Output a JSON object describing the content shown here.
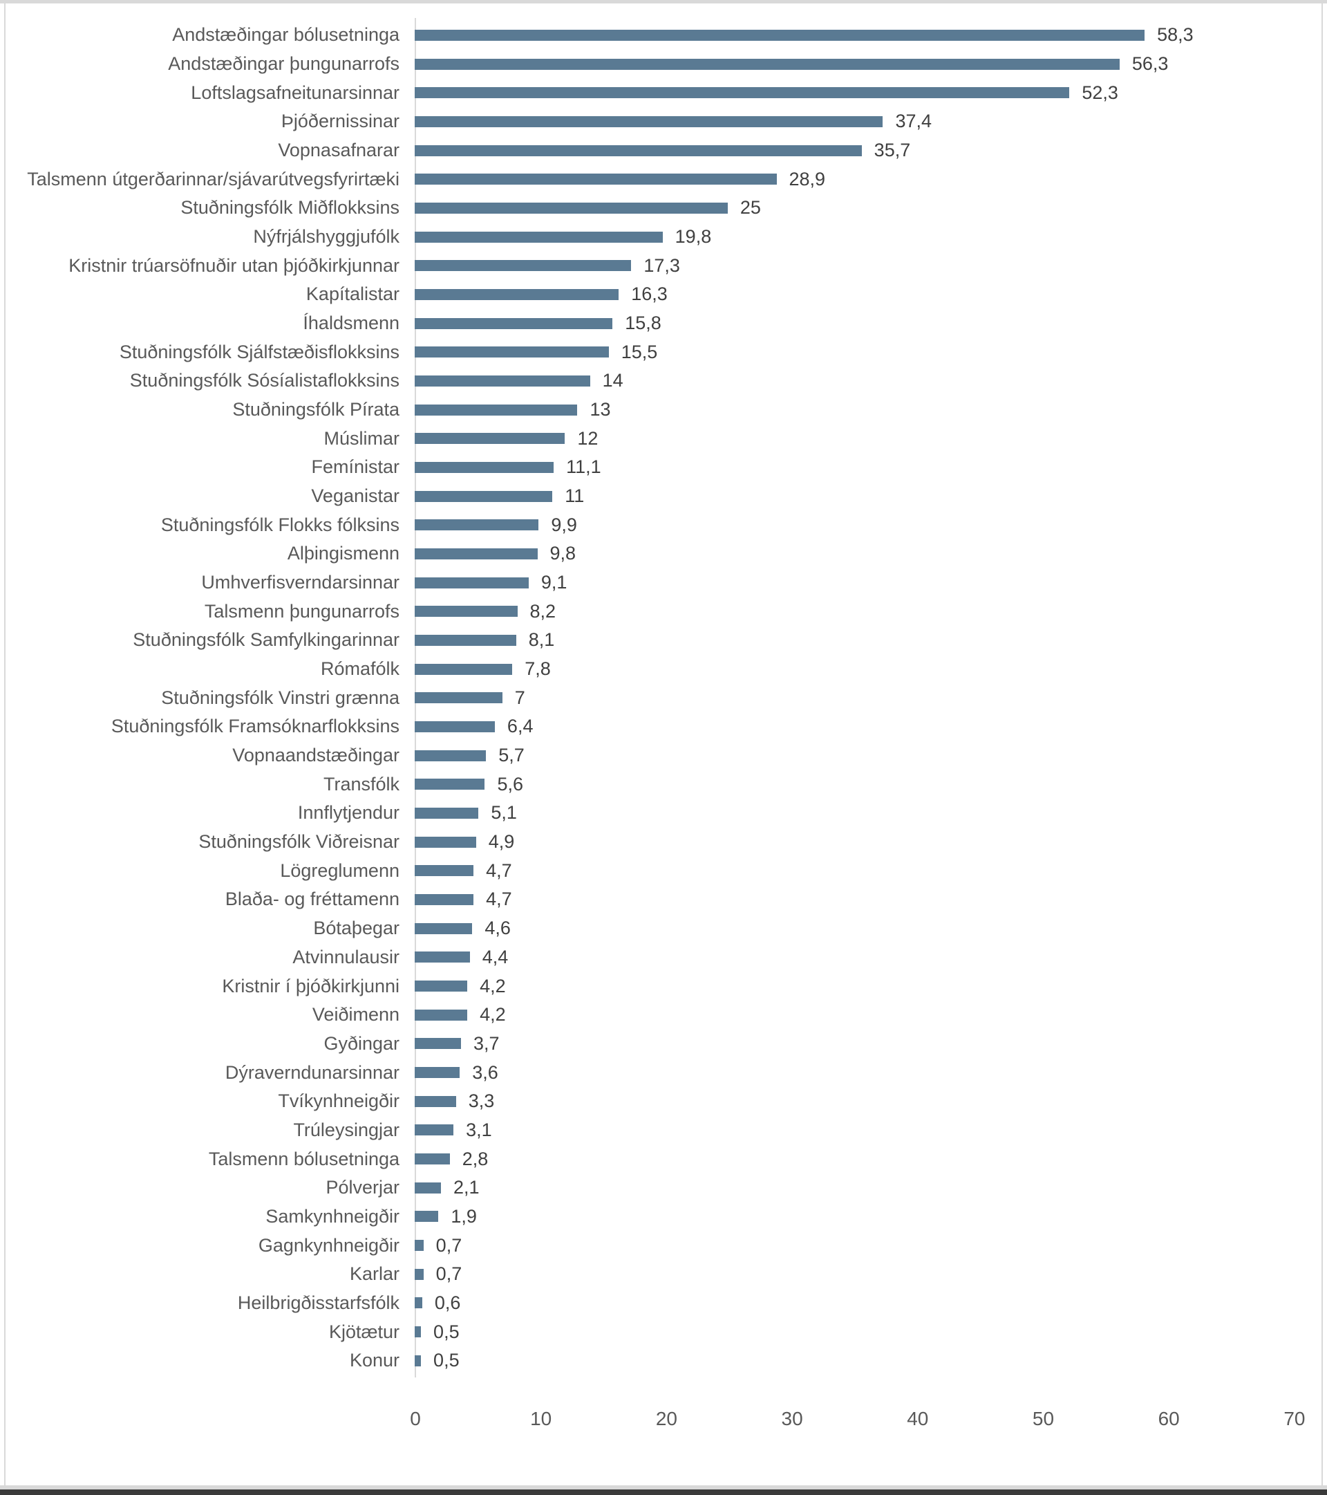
{
  "chart_data": {
    "type": "bar",
    "orientation": "horizontal",
    "title": "",
    "xlabel": "",
    "ylabel": "",
    "xlim": [
      0,
      70
    ],
    "x_ticks": [
      "0",
      "10",
      "20",
      "30",
      "40",
      "50",
      "60",
      "70"
    ],
    "grid": false,
    "legend": false,
    "bar_color": "#5a7a93",
    "category_label_color": "#595959",
    "value_label_color": "#404040",
    "axis_line_color": "#d9d9d9",
    "categories": [
      "Andstæðingar bólusetninga",
      "Andstæðingar þungunarrofs",
      "Loftslagsafneitunarsinnar",
      "Þjóðernissinar",
      "Vopnasafnarar",
      "Talsmenn útgerðarinnar/sjávarútvegsfyrirtæki",
      "Stuðningsfólk Miðflokksins",
      "Nýfrjálshyggjufólk",
      "Kristnir trúarsöfnuðir utan þjóðkirkjunnar",
      "Kapítalistar",
      "Íhaldsmenn",
      "Stuðningsfólk Sjálfstæðisflokksins",
      "Stuðningsfólk Sósíalistaflokksins",
      "Stuðningsfólk Pírata",
      "Múslimar",
      "Femínistar",
      "Veganistar",
      "Stuðningsfólk Flokks fólksins",
      "Alþingismenn",
      "Umhverfisverndarsinnar",
      "Talsmenn þungunarrofs",
      "Stuðningsfólk Samfylkingarinnar",
      "Rómafólk",
      "Stuðningsfólk Vinstri grænna",
      "Stuðningsfólk Framsóknarflokksins",
      "Vopnaandstæðingar",
      "Transfólk",
      "Innflytjendur",
      "Stuðningsfólk Viðreisnar",
      "Lögreglumenn",
      "Blaða- og fréttamenn",
      "Bótaþegar",
      "Atvinnulausir",
      "Kristnir í þjóðkirkjunni",
      "Veiðimenn",
      "Gyðingar",
      "Dýraverndunarsinnar",
      "Tvíkynhneigðir",
      "Trúleysingjar",
      "Talsmenn bólusetninga",
      "Pólverjar",
      "Samkynhneigðir",
      "Gagnkynhneigðir",
      "Karlar",
      "Heilbrigðisstarfsfólk",
      "Kjötætur",
      "Konur"
    ],
    "values": [
      58.3,
      56.3,
      52.3,
      37.4,
      35.7,
      28.9,
      25,
      19.8,
      17.3,
      16.3,
      15.8,
      15.5,
      14,
      13,
      12,
      11.1,
      11,
      9.9,
      9.8,
      9.1,
      8.2,
      8.1,
      7.8,
      7,
      6.4,
      5.7,
      5.6,
      5.1,
      4.9,
      4.7,
      4.7,
      4.6,
      4.4,
      4.2,
      4.2,
      3.7,
      3.6,
      3.3,
      3.1,
      2.8,
      2.1,
      1.9,
      0.7,
      0.7,
      0.6,
      0.5,
      0.5
    ],
    "value_labels": [
      "58,3",
      "56,3",
      "52,3",
      "37,4",
      "35,7",
      "28,9",
      "25",
      "19,8",
      "17,3",
      "16,3",
      "15,8",
      "15,5",
      "14",
      "13",
      "12",
      "11,1",
      "11",
      "9,9",
      "9,8",
      "9,1",
      "8,2",
      "8,1",
      "7,8",
      "7",
      "6,4",
      "5,7",
      "5,6",
      "5,1",
      "4,9",
      "4,7",
      "4,7",
      "4,6",
      "4,4",
      "4,2",
      "4,2",
      "3,7",
      "3,6",
      "3,3",
      "3,1",
      "2,8",
      "2,1",
      "1,9",
      "0,7",
      "0,7",
      "0,6",
      "0,5",
      "0,5"
    ]
  }
}
